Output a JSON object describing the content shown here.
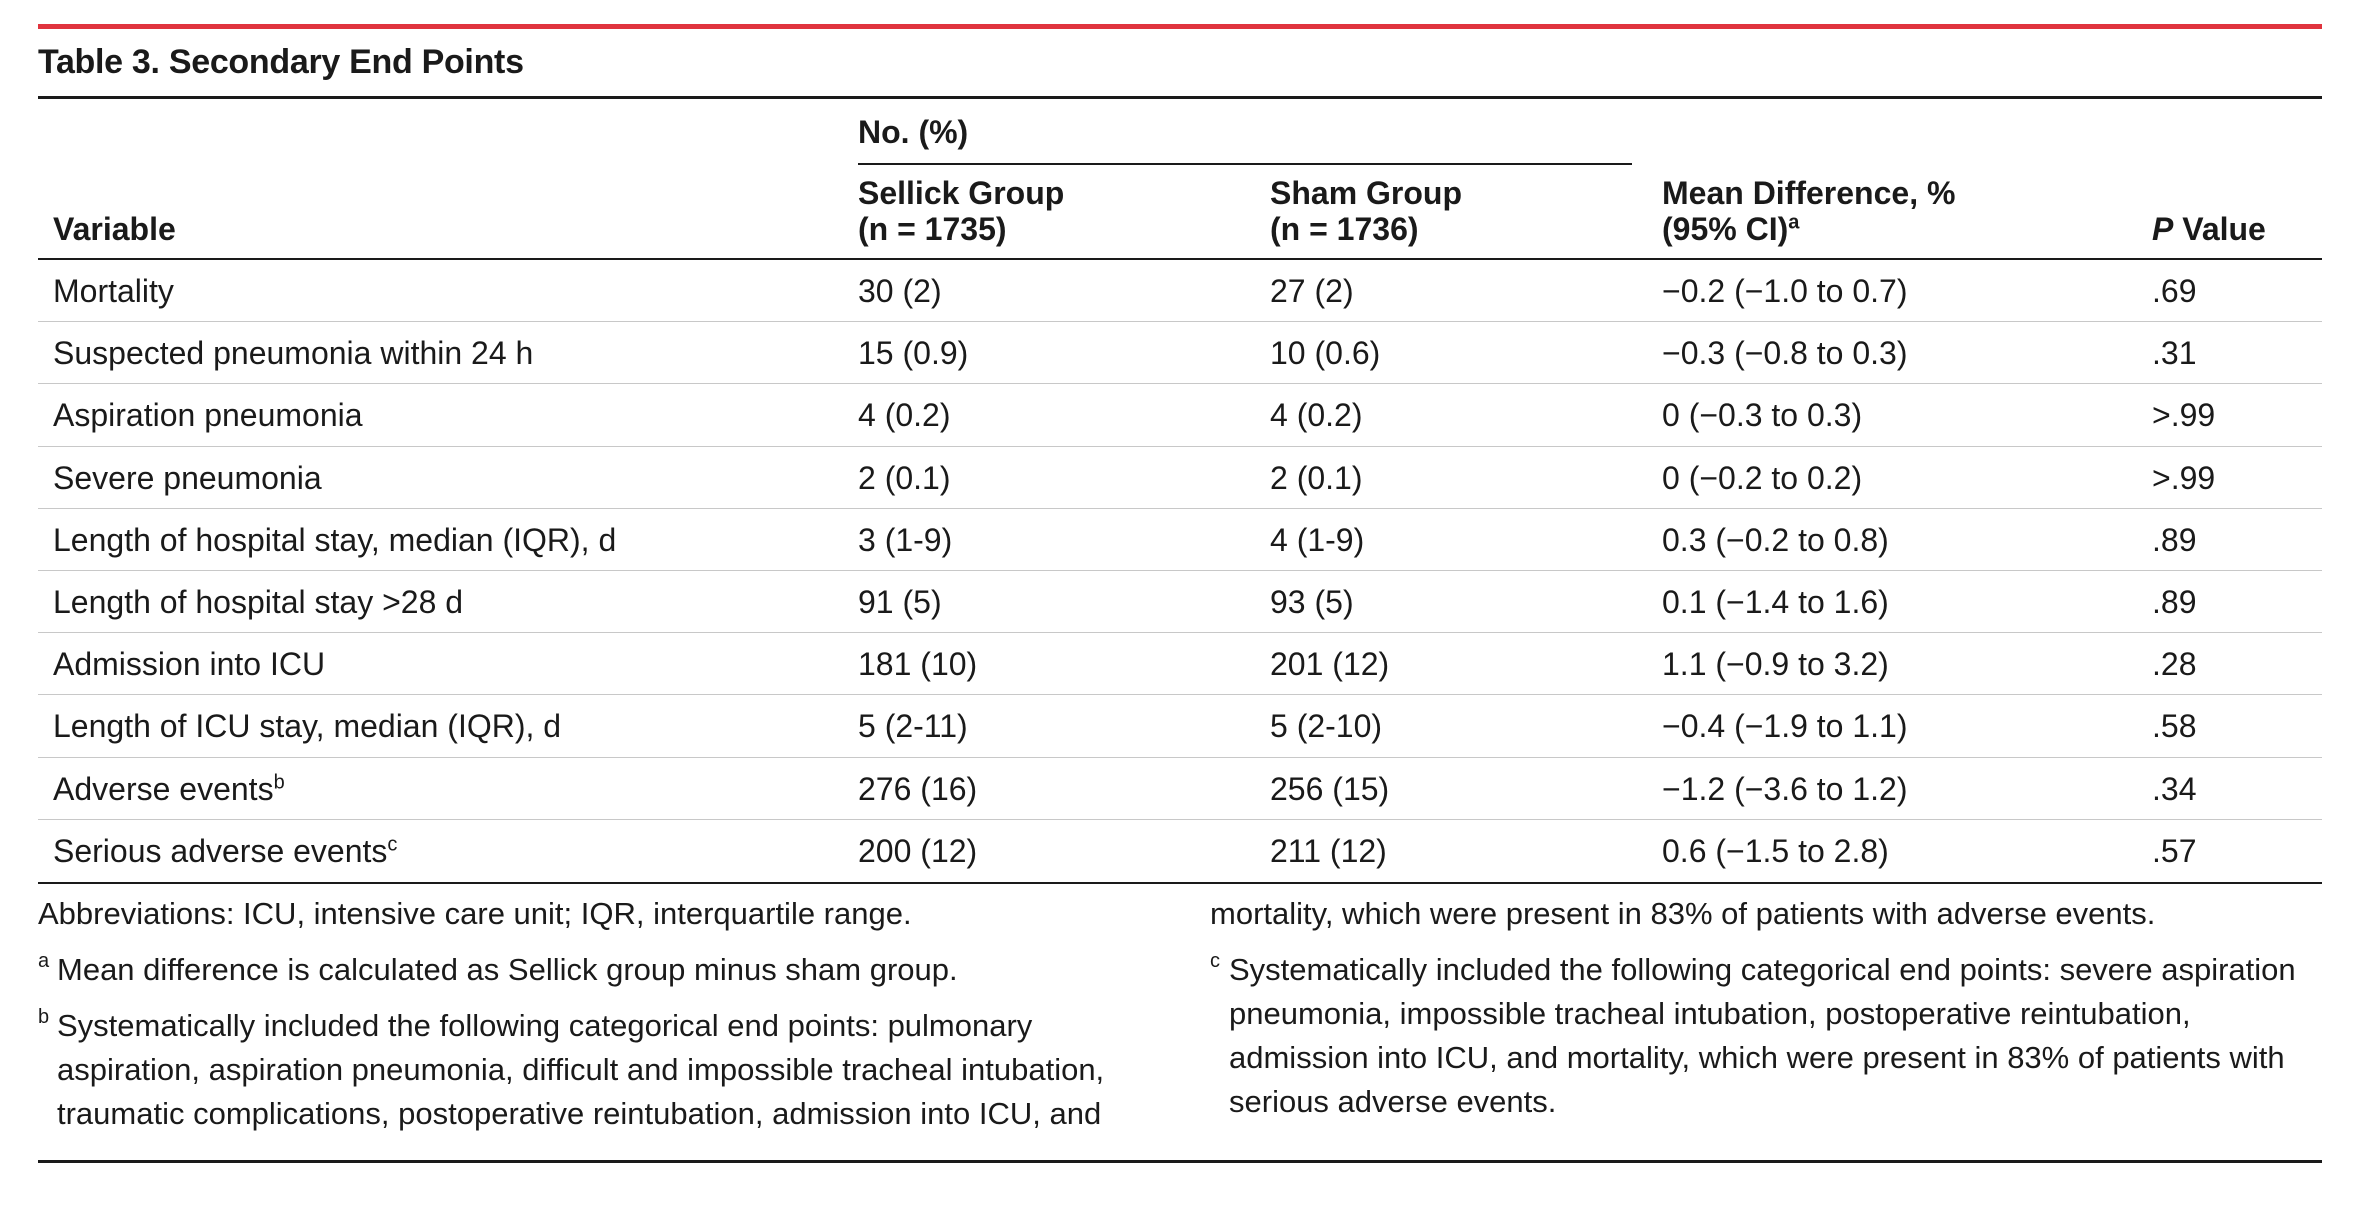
{
  "title": "Table 3. Secondary End Points",
  "header": {
    "group_label": "No. (%)",
    "variable": "Variable",
    "sellick_line1": "Sellick Group",
    "sellick_line2": "(n = 1735)",
    "sham_line1": "Sham Group",
    "sham_line2": "(n = 1736)",
    "diff_line1": "Mean Difference, %",
    "diff_line2": "(95% CI)",
    "diff_mark": "a",
    "p_italic": "P",
    "p_rest": " Value"
  },
  "rows": [
    {
      "variable": "Mortality",
      "mark": "",
      "sellick": "30 (2)",
      "sham": "27 (2)",
      "diff": "−0.2 (−1.0 to 0.7)",
      "p": ".69"
    },
    {
      "variable": "Suspected pneumonia within 24 h",
      "mark": "",
      "sellick": "15 (0.9)",
      "sham": "10 (0.6)",
      "diff": "−0.3 (−0.8 to 0.3)",
      "p": ".31"
    },
    {
      "variable": "Aspiration pneumonia",
      "mark": "",
      "sellick": "4 (0.2)",
      "sham": "4 (0.2)",
      "diff": "0 (−0.3 to 0.3)",
      "p": ">.99"
    },
    {
      "variable": "Severe pneumonia",
      "mark": "",
      "sellick": "2 (0.1)",
      "sham": "2 (0.1)",
      "diff": "0 (−0.2 to 0.2)",
      "p": ">.99"
    },
    {
      "variable": "Length of hospital stay, median (IQR), d",
      "mark": "",
      "sellick": "3 (1-9)",
      "sham": "4 (1-9)",
      "diff": "0.3 (−0.2 to 0.8)",
      "p": ".89"
    },
    {
      "variable": "Length of hospital stay >28 d",
      "mark": "",
      "sellick": "91 (5)",
      "sham": "93 (5)",
      "diff": "0.1 (−1.4 to 1.6)",
      "p": ".89"
    },
    {
      "variable": "Admission into ICU",
      "mark": "",
      "sellick": "181 (10)",
      "sham": "201 (12)",
      "diff": "1.1 (−0.9 to 3.2)",
      "p": ".28"
    },
    {
      "variable": "Length of ICU stay, median (IQR), d",
      "mark": "",
      "sellick": "5 (2-11)",
      "sham": "5 (2-10)",
      "diff": "−0.4 (−1.9 to 1.1)",
      "p": ".58"
    },
    {
      "variable": "Adverse events",
      "mark": "b",
      "sellick": "276 (16)",
      "sham": "256 (15)",
      "diff": "−1.2 (−3.6 to 1.2)",
      "p": ".34"
    },
    {
      "variable": "Serious adverse events",
      "mark": "c",
      "sellick": "200 (12)",
      "sham": "211 (12)",
      "diff": "0.6 (−1.5 to 2.8)",
      "p": ".57"
    }
  ],
  "footnotes": {
    "abbreviations": "Abbreviations: ICU, intensive care unit; IQR, interquartile range.",
    "a_mark": "a",
    "a_text": "Mean difference is calculated as Sellick group minus sham group.",
    "b_mark": "b",
    "b_text": "Systematically included the following categorical end points: pulmonary aspiration, aspiration pneumonia, difficult and impossible tracheal intubation, traumatic complications, postoperative reintubation, admission into ICU, and",
    "b_continuation": "mortality, which were present in 83% of patients with adverse events.",
    "c_mark": "c",
    "c_text": "Systematically included the following categorical end points: severe aspiration pneumonia, impossible tracheal intubation, postoperative reintubation, admission into ICU, and mortality, which were present in 83% of patients with serious adverse events."
  }
}
